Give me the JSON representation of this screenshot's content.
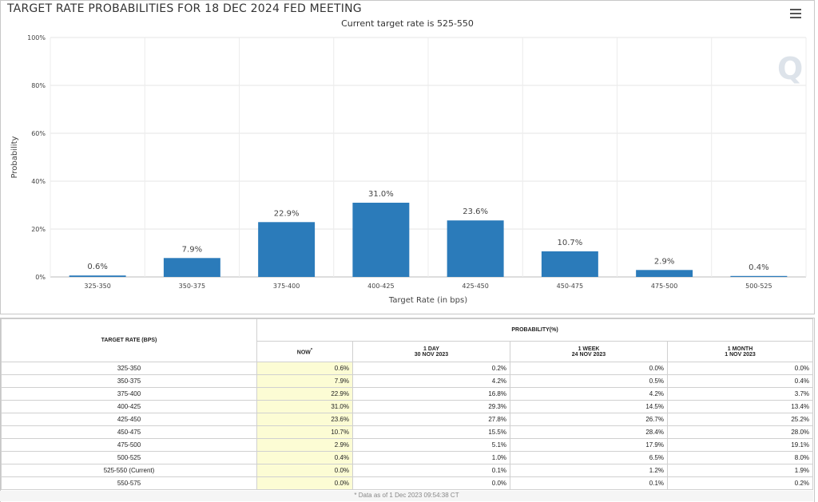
{
  "header": {
    "title": "TARGET RATE PROBABILITIES FOR 18 DEC 2024 FED MEETING",
    "subtitle": "Current target rate is 525-550"
  },
  "chart_data": {
    "type": "bar",
    "title": "TARGET RATE PROBABILITIES FOR 18 DEC 2024 FED MEETING",
    "subtitle": "Current target rate is 525-550",
    "xlabel": "Target Rate (in bps)",
    "ylabel": "Probability",
    "categories": [
      "325-350",
      "350-375",
      "375-400",
      "400-425",
      "425-450",
      "450-475",
      "475-500",
      "500-525"
    ],
    "values": [
      0.6,
      7.9,
      22.9,
      31.0,
      23.6,
      10.7,
      2.9,
      0.4
    ],
    "data_labels": [
      "0.6%",
      "7.9%",
      "22.9%",
      "31.0%",
      "23.6%",
      "10.7%",
      "2.9%",
      "0.4%"
    ],
    "ylim": [
      0,
      100
    ],
    "yticks": [
      0,
      20,
      40,
      60,
      80,
      100
    ],
    "ytick_labels": [
      "0%",
      "20%",
      "40%",
      "60%",
      "80%",
      "100%"
    ],
    "grid": true,
    "bar_color": "#2b7bba"
  },
  "table": {
    "col_rate": "TARGET RATE (BPS)",
    "col_prob": "PROBABILITY(%)",
    "col_now": "NOW",
    "col_now_mark": "*",
    "col_1day": "1 DAY",
    "col_1day_date": "30 NOV 2023",
    "col_1week": "1 WEEK",
    "col_1week_date": "24 NOV 2023",
    "col_1month": "1 MONTH",
    "col_1month_date": "1 NOV 2023",
    "rows": [
      {
        "rate": "325-350",
        "now": "0.6%",
        "d1": "0.2%",
        "w1": "0.0%",
        "m1": "0.0%"
      },
      {
        "rate": "350-375",
        "now": "7.9%",
        "d1": "4.2%",
        "w1": "0.5%",
        "m1": "0.4%"
      },
      {
        "rate": "375-400",
        "now": "22.9%",
        "d1": "16.8%",
        "w1": "4.2%",
        "m1": "3.7%"
      },
      {
        "rate": "400-425",
        "now": "31.0%",
        "d1": "29.3%",
        "w1": "14.5%",
        "m1": "13.4%"
      },
      {
        "rate": "425-450",
        "now": "23.6%",
        "d1": "27.8%",
        "w1": "26.7%",
        "m1": "25.2%"
      },
      {
        "rate": "450-475",
        "now": "10.7%",
        "d1": "15.5%",
        "w1": "28.4%",
        "m1": "28.0%"
      },
      {
        "rate": "475-500",
        "now": "2.9%",
        "d1": "5.1%",
        "w1": "17.9%",
        "m1": "19.1%"
      },
      {
        "rate": "500-525",
        "now": "0.4%",
        "d1": "1.0%",
        "w1": "6.5%",
        "m1": "8.0%"
      },
      {
        "rate": "525-550 (Current)",
        "now": "0.0%",
        "d1": "0.1%",
        "w1": "1.2%",
        "m1": "1.9%"
      },
      {
        "rate": "550-575",
        "now": "0.0%",
        "d1": "0.0%",
        "w1": "0.1%",
        "m1": "0.2%"
      }
    ]
  },
  "footnote": "* Data as of 1 Dec 2023 09:54:38 CT"
}
